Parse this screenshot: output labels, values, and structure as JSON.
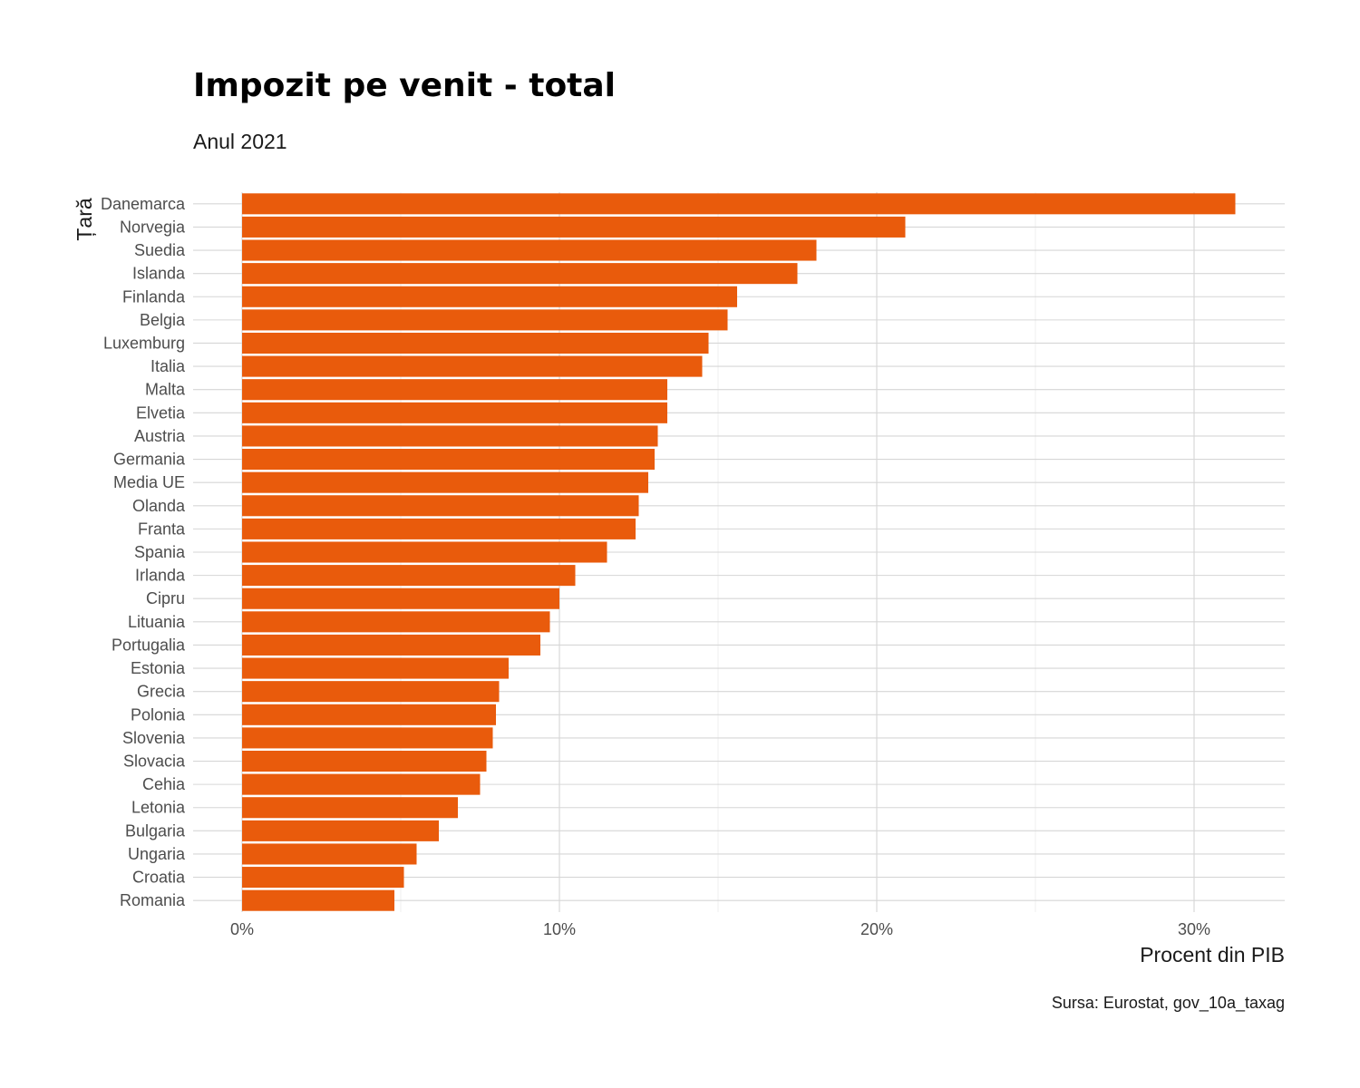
{
  "chart_data": {
    "type": "bar",
    "orientation": "horizontal",
    "title": "Impozit pe venit - total",
    "subtitle": "Anul 2021",
    "xlabel": "Procent din PIB",
    "ylabel": "Țară",
    "caption": "Sursa: Eurostat, gov_10a_taxag",
    "xlim": [
      0,
      32.8
    ],
    "xticks": [
      0,
      10,
      20,
      30
    ],
    "xtick_labels": [
      "0%",
      "10%",
      "20%",
      "30%"
    ],
    "grid": true,
    "bar_color": "#E95B0C",
    "categories": [
      "Danemarca",
      "Norvegia",
      "Suedia",
      "Islanda",
      "Finlanda",
      "Belgia",
      "Luxemburg",
      "Italia",
      "Malta",
      "Elvetia",
      "Austria",
      "Germania",
      "Media UE",
      "Olanda",
      "Franta",
      "Spania",
      "Irlanda",
      "Cipru",
      "Lituania",
      "Portugalia",
      "Estonia",
      "Grecia",
      "Polonia",
      "Slovenia",
      "Slovacia",
      "Cehia",
      "Letonia",
      "Bulgaria",
      "Ungaria",
      "Croatia",
      "Romania"
    ],
    "values": [
      31.3,
      20.9,
      18.1,
      17.5,
      15.6,
      15.3,
      14.7,
      14.5,
      13.4,
      13.4,
      13.1,
      13.0,
      12.8,
      12.5,
      12.4,
      11.5,
      10.5,
      10.0,
      9.7,
      9.4,
      8.4,
      8.1,
      8.0,
      7.9,
      7.7,
      7.5,
      6.8,
      6.2,
      5.5,
      5.1,
      4.8
    ]
  }
}
